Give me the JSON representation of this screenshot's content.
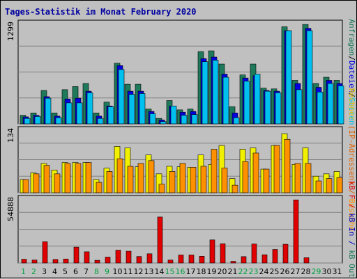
{
  "chart_data": {
    "type": "bar",
    "title": "Tages-Statistik im Monat February 2020",
    "categories": [
      "1",
      "2",
      "3",
      "4",
      "5",
      "6",
      "7",
      "8",
      "9",
      "10",
      "11",
      "12",
      "13",
      "14",
      "15",
      "16",
      "17",
      "18",
      "19",
      "20",
      "21",
      "22",
      "23",
      "24",
      "25",
      "26",
      "27",
      "28",
      "29",
      "30",
      "31"
    ],
    "weekend_days": [
      "1",
      "2",
      "8",
      "9",
      "15",
      "16",
      "22",
      "23",
      "29"
    ],
    "colors": {
      "anfragen": "#1E7A5A",
      "dateien": "#0000E0",
      "kbin": "#0000C0",
      "hits_light": "#00C0F0",
      "rechner": "#F0F000",
      "besuche": "#FF9000",
      "kbf": "#E00000",
      "title": "#0000A0",
      "weekend_label": "#00A040"
    },
    "panels": [
      {
        "name": "requests",
        "ylabel_max": "1299",
        "ymax": 1299,
        "legend": [
          {
            "text": "Anfragen",
            "color": "#1E7A5A"
          },
          {
            "text": "/",
            "color": "#000000"
          },
          {
            "text": "Dateien",
            "color": "#0000E0"
          },
          {
            "text": "/",
            "color": "#000000"
          },
          {
            "text": "Seiten",
            "color": "#00C0F0"
          }
        ],
        "series": [
          {
            "name": "Anfragen",
            "color": "#1E7A5A",
            "values": [
              110,
              140,
              430,
              140,
              440,
              480,
              520,
              140,
              280,
              780,
              510,
              510,
              190,
              70,
              300,
              180,
              190,
              930,
              940,
              770,
              220,
              630,
              770,
              460,
              450,
              1250,
              560,
              1280,
              520,
              600,
              560
            ]
          },
          {
            "name": "Dateien",
            "color": "#0000E0",
            "values": [
              90,
              110,
              350,
              100,
              320,
              330,
              420,
              100,
              230,
              750,
              420,
              420,
              160,
              50,
              230,
              150,
              160,
              840,
              860,
              640,
              140,
              590,
              620,
              430,
              420,
              1200,
              520,
              1230,
              470,
              560,
              520
            ]
          },
          {
            "name": "Seiten",
            "color": "#00C0F0",
            "values": [
              70,
              95,
              330,
              80,
              270,
              270,
              400,
              70,
              220,
              700,
              380,
              390,
              130,
              30,
              230,
              110,
              120,
              800,
              820,
              600,
              80,
              550,
              640,
              420,
              400,
              1200,
              440,
              1200,
              410,
              520,
              490
            ]
          }
        ]
      },
      {
        "name": "visitors",
        "ylabel_max": "134",
        "ymax": 134,
        "legend": [
          {
            "text": "Rechner",
            "color": "#E0C000"
          },
          {
            "text": " (IP-Adressen) / ",
            "color": "#E06000"
          },
          {
            "text": "Besuche",
            "color": "#FF9000"
          }
        ],
        "series": [
          {
            "name": "Rechner",
            "color": "#F0F000",
            "values": [
              28,
              42,
              62,
              48,
              64,
              64,
              64,
              28,
              52,
              98,
              95,
              55,
              80,
              40,
              56,
              55,
              54,
              80,
              60,
              100,
              30,
              92,
              95,
              50,
              100,
              125,
              60,
              95,
              35,
              40,
              45
            ]
          },
          {
            "name": "Besuche",
            "color": "#FF9000",
            "values": [
              28,
              40,
              58,
              40,
              62,
              62,
              64,
              22,
              45,
              72,
              56,
              62,
              68,
              18,
              45,
              62,
              54,
              56,
              92,
              52,
              16,
              66,
              84,
              50,
              100,
              113,
              62,
              62,
              25,
              30,
              32
            ]
          }
        ]
      },
      {
        "name": "traffic",
        "ylabel_max": "54888",
        "ymax": 54888,
        "legend": [
          {
            "text": "kB F",
            "color": "#E00000"
          },
          {
            "text": " / ",
            "color": "#E00000"
          },
          {
            "text": "kB In",
            "color": "#0000C0"
          },
          {
            "text": " / ",
            "color": "#0000C0"
          },
          {
            "text": "kB Out",
            "color": "#1E7A5A"
          }
        ],
        "series": [
          {
            "name": "kB F",
            "color": "#E00000",
            "values": [
              3200,
              2500,
              18000,
              3000,
              3400,
              13500,
              9500,
              2300,
              5000,
              10900,
              10000,
              5500,
              7800,
              39000,
              2500,
              6800,
              6800,
              5700,
              19600,
              16300,
              1400,
              5400,
              16100,
              7000,
              11500,
              15900,
              53500,
              4500,
              0,
              0,
              0
            ]
          }
        ]
      }
    ],
    "day_labels": [
      "1",
      "2",
      "3",
      "4",
      "5",
      "6",
      "7",
      "8",
      "9",
      "10",
      "11",
      "12",
      "13",
      "14",
      "15",
      "16",
      "17",
      "18",
      "19",
      "20",
      "21",
      "22",
      "23",
      "24",
      "25",
      "26",
      "27",
      "28",
      "29",
      "30",
      "31"
    ]
  }
}
